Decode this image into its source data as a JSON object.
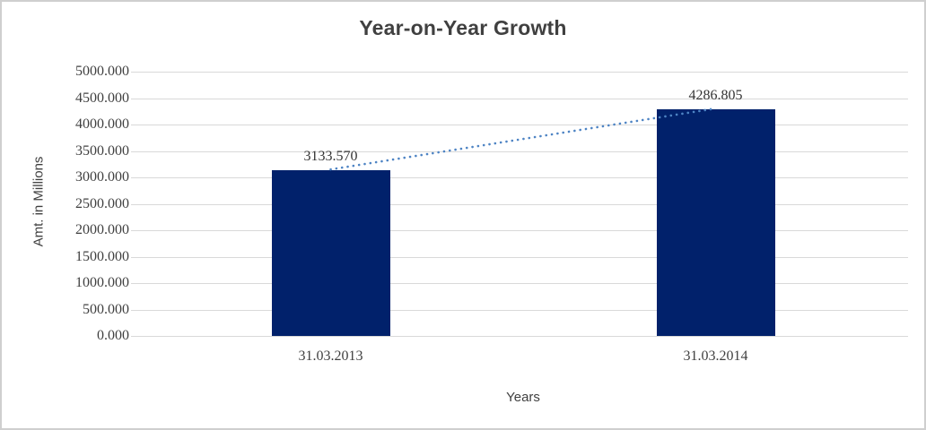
{
  "chart_data": {
    "type": "bar",
    "title": "Year-on-Year Growth",
    "xlabel": "Years",
    "ylabel": "Amt. in Millions",
    "categories": [
      "31.03.2013",
      "31.03.2014"
    ],
    "values": [
      3133.57,
      4286.805
    ],
    "data_labels": [
      "3133.570",
      "4286.805"
    ],
    "ylim": [
      0,
      5000
    ],
    "ytick_step": 500,
    "ytick_labels": [
      "0.000",
      "500.000",
      "1000.000",
      "1500.000",
      "2000.000",
      "2500.000",
      "3000.000",
      "3500.000",
      "4000.000",
      "4500.000",
      "5000.000"
    ],
    "grid": true,
    "legend": "none",
    "trendline": {
      "style": "dotted",
      "connects": "bar-tops"
    },
    "colors": {
      "bar": "#01216b",
      "gridline": "#d9d9d9",
      "trendline": "#4e84c4",
      "title_text": "#404040",
      "axis_text": "#3f3f3f",
      "border": "#cfcfcf"
    }
  }
}
